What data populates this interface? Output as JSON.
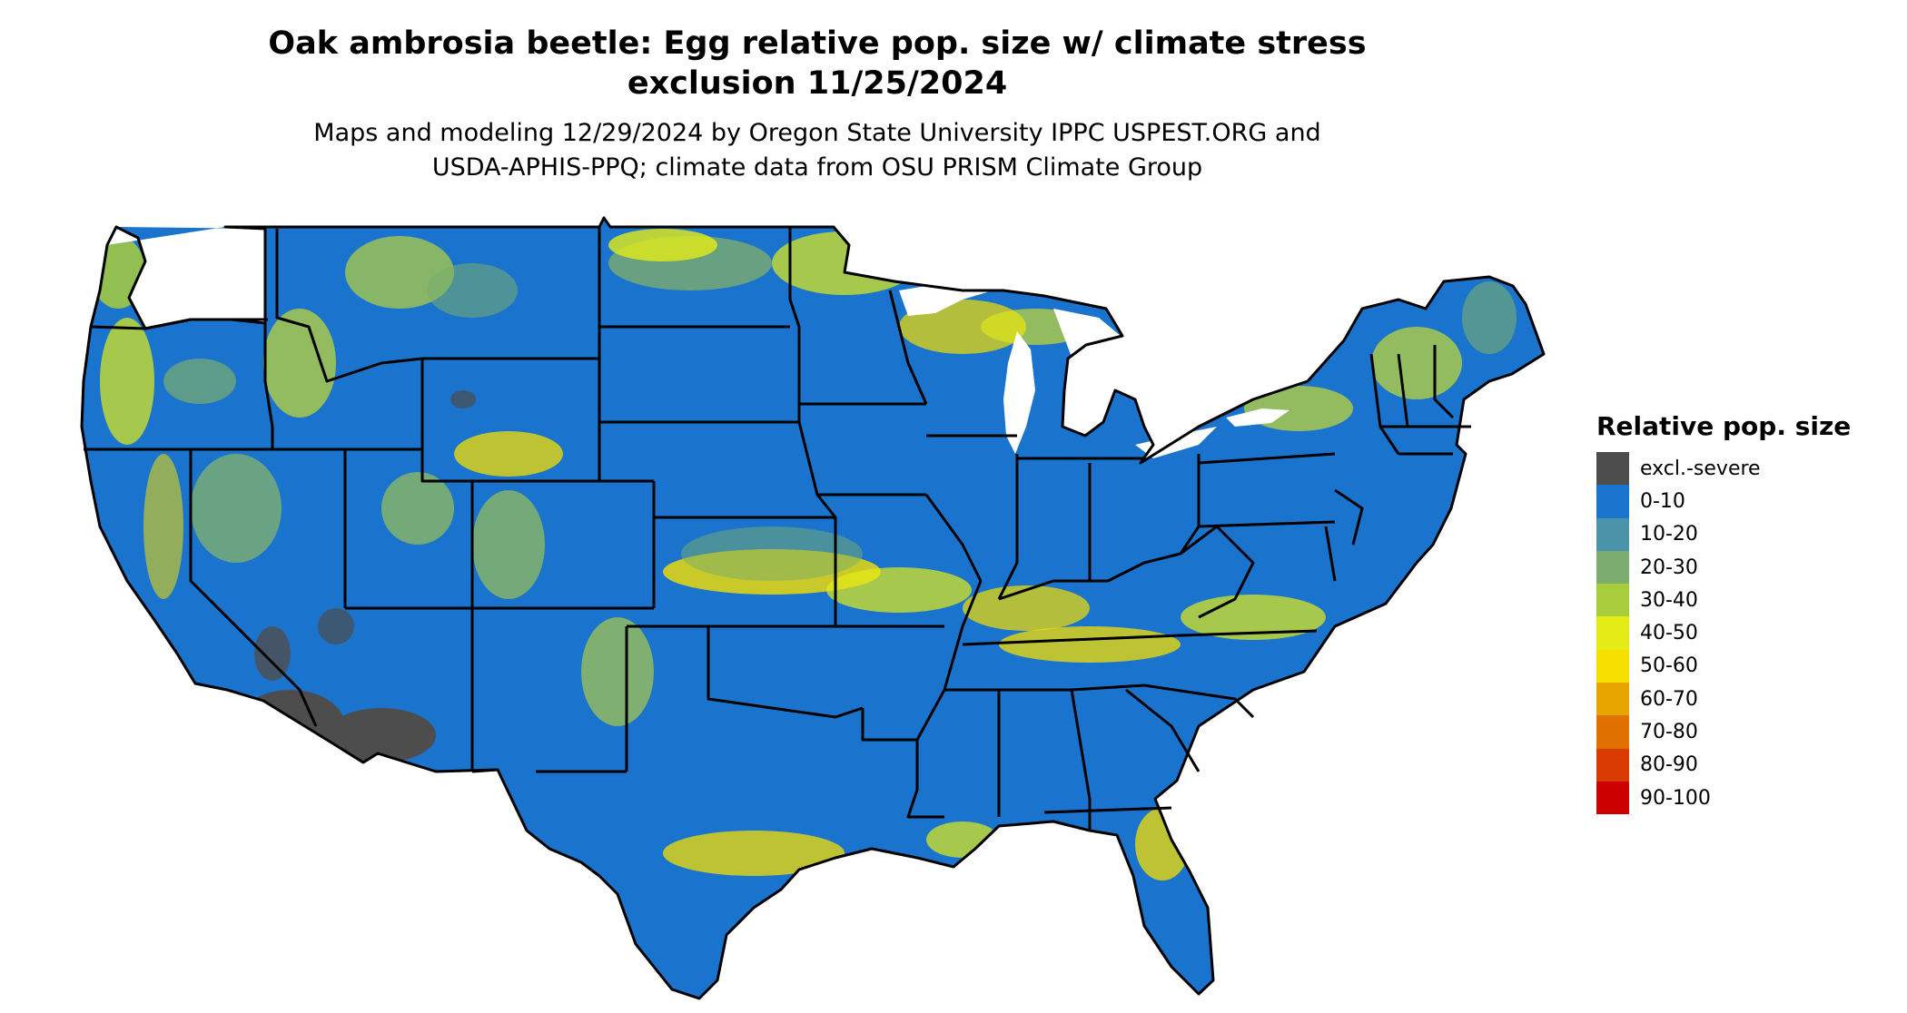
{
  "title": {
    "line1": "Oak ambrosia beetle: Egg relative pop. size w/ climate stress",
    "line2": "exclusion 11/25/2024"
  },
  "subtitle": {
    "line1": "Maps and modeling 12/29/2024 by Oregon State University IPPC USPEST.ORG and",
    "line2": "USDA-APHIS-PPQ; climate data from OSU PRISM Climate Group"
  },
  "legend": {
    "title": "Relative pop. size",
    "items": [
      {
        "label": "excl.-severe",
        "color": "#4d4d4d"
      },
      {
        "label": "0-10",
        "color": "#1a73cc"
      },
      {
        "label": "10-20",
        "color": "#4a93a8"
      },
      {
        "label": "20-30",
        "color": "#7aad6e"
      },
      {
        "label": "30-40",
        "color": "#a8cc3c"
      },
      {
        "label": "40-50",
        "color": "#e3ec16"
      },
      {
        "label": "50-60",
        "color": "#f5de00"
      },
      {
        "label": "60-70",
        "color": "#e8a500"
      },
      {
        "label": "70-80",
        "color": "#e07000"
      },
      {
        "label": "80-90",
        "color": "#d83a00"
      },
      {
        "label": "90-100",
        "color": "#cc0000"
      }
    ]
  },
  "colors": {
    "base": "#1a73cc",
    "border": "#000000",
    "lake": "#ffffff"
  }
}
